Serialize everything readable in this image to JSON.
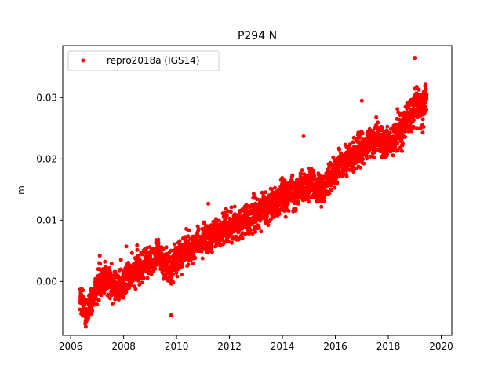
{
  "chart_data": {
    "type": "scatter",
    "title": "P294 N",
    "xlabel": "",
    "ylabel": "m",
    "xlim": [
      2005.7,
      2020.4
    ],
    "ylim": [
      -0.0088,
      0.0385
    ],
    "xticks": [
      2006,
      2008,
      2010,
      2012,
      2014,
      2016,
      2018,
      2020
    ],
    "xtick_labels": [
      "2006",
      "2008",
      "2010",
      "2012",
      "2014",
      "2016",
      "2018",
      "2020"
    ],
    "yticks": [
      0.0,
      0.01,
      0.02,
      0.03
    ],
    "ytick_labels": [
      "0.00",
      "0.01",
      "0.02",
      "0.03"
    ],
    "grid": false,
    "legend_position": "top-left",
    "series": [
      {
        "name": "repro2018a (IGS14)",
        "color": "#ff0000",
        "marker": "circle",
        "trend_points": [
          {
            "x": 2006.35,
            "y": -0.003
          },
          {
            "x": 2006.6,
            "y": -0.005
          },
          {
            "x": 2007.0,
            "y": -0.001
          },
          {
            "x": 2007.3,
            "y": 0.0005
          },
          {
            "x": 2007.7,
            "y": -0.001
          },
          {
            "x": 2008.0,
            "y": 0.0
          },
          {
            "x": 2008.5,
            "y": 0.002
          },
          {
            "x": 2009.0,
            "y": 0.0035
          },
          {
            "x": 2009.3,
            "y": 0.0045
          },
          {
            "x": 2009.7,
            "y": 0.002
          },
          {
            "x": 2010.1,
            "y": 0.0045
          },
          {
            "x": 2010.6,
            "y": 0.0055
          },
          {
            "x": 2011.0,
            "y": 0.0068
          },
          {
            "x": 2011.5,
            "y": 0.0075
          },
          {
            "x": 2012.0,
            "y": 0.0092
          },
          {
            "x": 2012.5,
            "y": 0.0098
          },
          {
            "x": 2013.0,
            "y": 0.011
          },
          {
            "x": 2013.5,
            "y": 0.0122
          },
          {
            "x": 2014.0,
            "y": 0.0138
          },
          {
            "x": 2014.5,
            "y": 0.0148
          },
          {
            "x": 2015.0,
            "y": 0.0162
          },
          {
            "x": 2015.5,
            "y": 0.0145
          },
          {
            "x": 2016.0,
            "y": 0.0185
          },
          {
            "x": 2016.5,
            "y": 0.02
          },
          {
            "x": 2017.0,
            "y": 0.0215
          },
          {
            "x": 2017.5,
            "y": 0.0235
          },
          {
            "x": 2018.0,
            "y": 0.0225
          },
          {
            "x": 2018.5,
            "y": 0.025
          },
          {
            "x": 2019.0,
            "y": 0.0285
          },
          {
            "x": 2019.45,
            "y": 0.029
          }
        ],
        "outliers": [
          {
            "x": 2009.8,
            "y": -0.0055
          },
          {
            "x": 2019.0,
            "y": 0.0365
          },
          {
            "x": 2014.8,
            "y": 0.0237
          },
          {
            "x": 2017.0,
            "y": 0.0295
          },
          {
            "x": 2007.1,
            "y": 0.0042
          },
          {
            "x": 2008.1,
            "y": 0.0057
          },
          {
            "x": 2011.2,
            "y": 0.0127
          }
        ],
        "scatter_spread": 0.0016,
        "date_range": [
          2006.35,
          2019.45
        ]
      }
    ]
  }
}
